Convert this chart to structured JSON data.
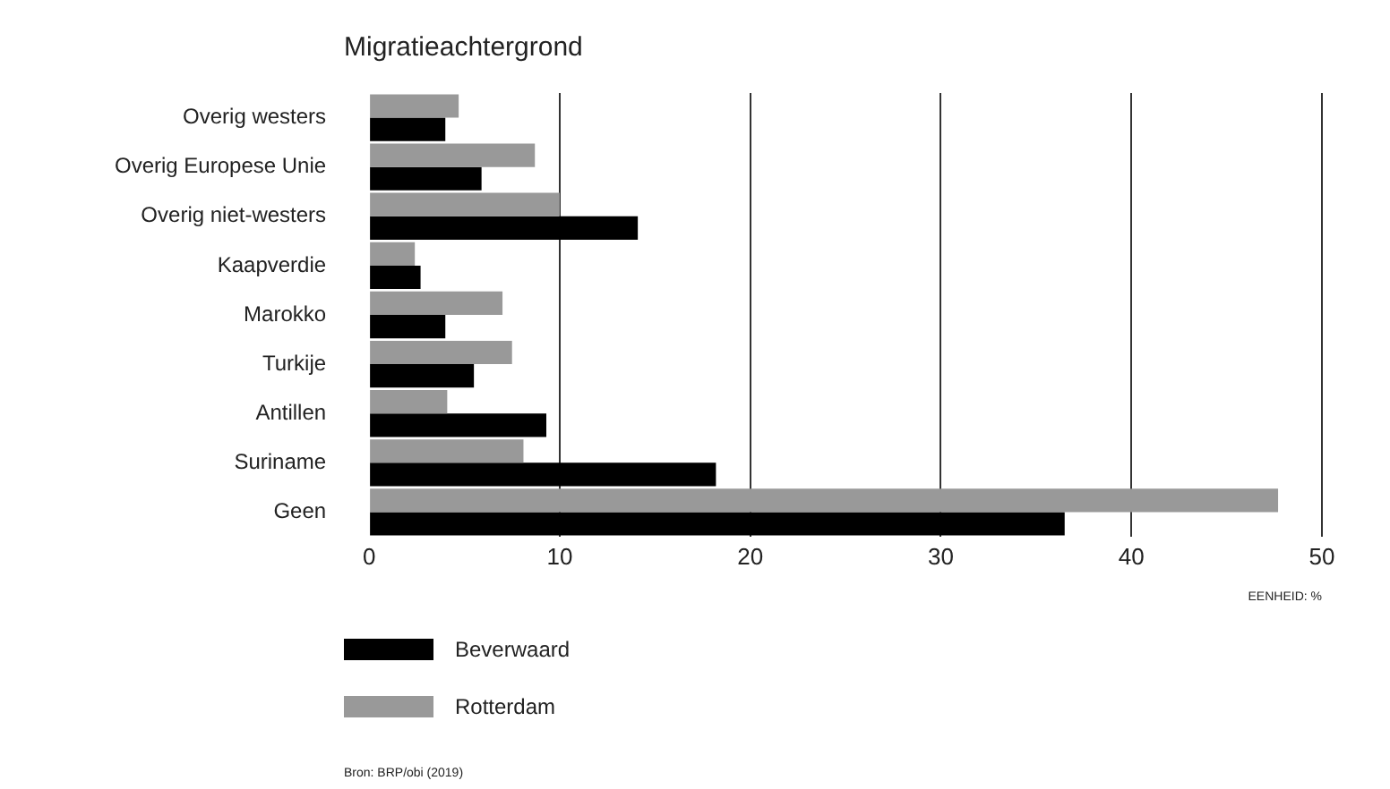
{
  "chart_data": {
    "type": "bar",
    "orientation": "horizontal",
    "title": "Migratieachtergrond",
    "xlabel": "EENHEID: %",
    "categories": [
      "Overig westers",
      "Overig Europese Unie",
      "Overig niet-westers",
      "Kaapverdie",
      "Marokko",
      "Turkije",
      "Antillen",
      "Suriname",
      "Geen"
    ],
    "series": [
      {
        "name": "Beverwaard",
        "color": "#000000",
        "values": [
          4.0,
          5.9,
          14.1,
          2.7,
          4.0,
          5.5,
          9.3,
          18.2,
          36.5
        ]
      },
      {
        "name": "Rotterdam",
        "color": "#999999",
        "values": [
          4.7,
          8.7,
          10.0,
          2.4,
          7.0,
          7.5,
          4.1,
          8.1,
          47.7
        ]
      }
    ],
    "xlim": [
      0,
      50
    ],
    "xticks": [
      0,
      10,
      20,
      30,
      40,
      50
    ],
    "grid": "x",
    "legend": "bottom left",
    "annotations": [
      "Bron: BRP/obi (2019)"
    ]
  }
}
